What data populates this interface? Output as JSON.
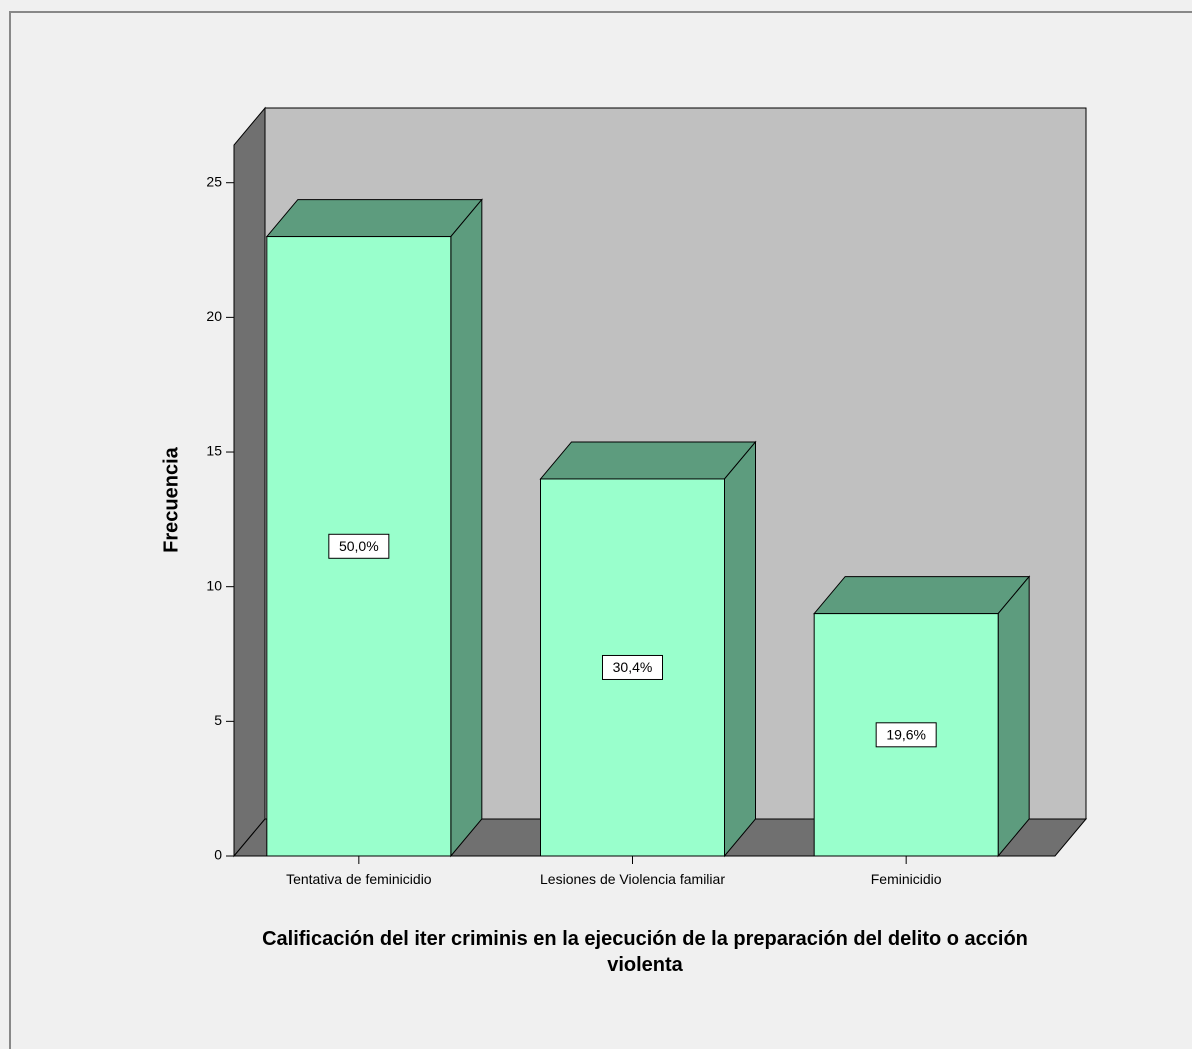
{
  "chart_data": {
    "type": "bar3d",
    "x_label": "Calificación del iter criminis en la ejecución de la preparación del delito o acción violenta",
    "y_label": "Frecuencia",
    "categories": [
      "Tentativa de feminicidio",
      "Lesiones de Violencia familiar",
      "Feminicidio"
    ],
    "values": [
      23,
      14,
      9
    ],
    "value_labels": [
      "50,0%",
      "30,4%",
      "19,6%"
    ],
    "color": "#99ffcc",
    "side_color": "#5d9c7e",
    "ylim": [
      0,
      26.4
    ],
    "yticks": [
      0,
      5,
      10,
      15,
      20,
      25
    ]
  }
}
